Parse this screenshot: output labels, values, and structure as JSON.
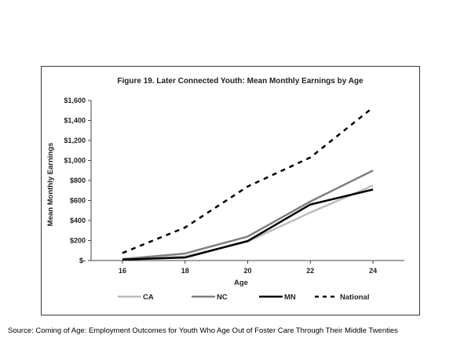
{
  "chart_data": {
    "type": "line",
    "title": "Figure 19. Later Connected Youth: Mean Monthly Earnings by Age",
    "xlabel": "Age",
    "ylabel": "Mean Monthly Earnings",
    "x": [
      16,
      18,
      20,
      22,
      24
    ],
    "x_tick_labels": [
      "16",
      "18",
      "20",
      "22",
      "24"
    ],
    "y_ticks": [
      0,
      200,
      400,
      600,
      800,
      1000,
      1200,
      1400,
      1600
    ],
    "y_tick_labels": [
      "$-",
      "$200",
      "$400",
      "$600",
      "$800",
      "$1,000",
      "$1,200",
      "$1,400",
      "$1,600"
    ],
    "xlim": [
      15,
      25
    ],
    "ylim": [
      0,
      1600
    ],
    "grid": false,
    "legend_position": "bottom",
    "series": [
      {
        "name": "CA",
        "color": "#bdbdbd",
        "style": "solid",
        "values": [
          10,
          40,
          190,
          480,
          750
        ]
      },
      {
        "name": "NC",
        "color": "#7f7f7f",
        "style": "solid",
        "values": [
          15,
          70,
          240,
          590,
          900
        ]
      },
      {
        "name": "MN",
        "color": "#000000",
        "style": "solid",
        "values": [
          10,
          30,
          195,
          560,
          710
        ]
      },
      {
        "name": "National",
        "color": "#000000",
        "style": "dashed",
        "values": [
          75,
          330,
          740,
          1030,
          1530
        ]
      }
    ]
  },
  "source_note": "Source: Coming of Age: Employment Outcomes for Youth Who Age Out of Foster Care Through Their Middle Twenties"
}
